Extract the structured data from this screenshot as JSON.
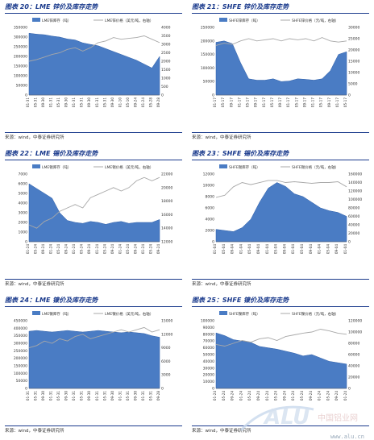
{
  "source_text": "来源：wind，中泰证券研究所",
  "watermark": {
    "logo_text": "ALU",
    "site_text": "中国铝业网",
    "url": "www.alu.cn"
  },
  "colors": {
    "fill": "#4a7cc4",
    "fill_dark": "#2f5fa8",
    "line": "#a8a8a8",
    "title": "#1a3a8c"
  },
  "panels": [
    {
      "id": "p20",
      "title": "图表 20：LME 锌价及库存走势",
      "chart_data": {
        "type": "area",
        "legend": [
          "LME锌库存（吨）",
          "LME锌价格（美元/吨，右轴）"
        ],
        "x": [
          "01-31",
          "05-31",
          "09-30",
          "01-31",
          "05-31",
          "09-30",
          "01-31",
          "05-31",
          "09-30",
          "01-31",
          "05-31",
          "09-30",
          "01-10",
          "05-10",
          "09-24",
          "01-24",
          "05-28",
          "09-28"
        ],
        "ylim": [
          0,
          350000
        ],
        "y2lim": [
          0,
          4000
        ],
        "yticks": [
          0,
          50000,
          100000,
          150000,
          200000,
          250000,
          300000,
          350000
        ],
        "y2ticks": [
          0,
          500,
          1000,
          1500,
          2000,
          2500,
          3000,
          3500,
          4000
        ],
        "series": [
          {
            "name": "LME锌库存（吨）",
            "values": [
              320000,
              315000,
              312000,
              305000,
              300000,
              290000,
              285000,
              270000,
              262000,
              255000,
              240000,
              225000,
              210000,
              195000,
              180000,
              160000,
              140000,
              200000
            ]
          },
          {
            "name": "LME锌价格（美元/吨，右轴）",
            "values": [
              2000,
              2100,
              2250,
              2400,
              2500,
              2700,
              2800,
              2600,
              2800,
              3100,
              3200,
              3400,
              3300,
              3350,
              3400,
              3500,
              3300,
              3100
            ]
          }
        ]
      }
    },
    {
      "id": "p21",
      "title": "图表 21：SHFE 锌价及库存走势",
      "chart_data": {
        "type": "area",
        "legend": [
          "SHFE锌库存（吨）",
          "SHFE锌价格（元/吨，右轴）"
        ],
        "x": [
          "01-17",
          "05-17",
          "09-17",
          "01-17",
          "05-17",
          "09-17",
          "01-17",
          "05-17",
          "09-17",
          "01-17",
          "05-17",
          "09-17",
          "01-17",
          "05-17",
          "09-17",
          "01-17",
          "05-17"
        ],
        "ylim": [
          0,
          250000
        ],
        "y2lim": [
          0,
          30000
        ],
        "yticks": [
          0,
          50000,
          100000,
          150000,
          200000,
          250000
        ],
        "y2ticks": [
          0,
          5000,
          10000,
          15000,
          20000,
          25000,
          30000
        ],
        "series": [
          {
            "name": "SHFE锌库存（吨）",
            "values": [
              195000,
              200000,
              190000,
              120000,
              60000,
              55000,
              55000,
              60000,
              50000,
              52000,
              60000,
              58000,
              55000,
              60000,
              90000,
              150000,
              160000
            ]
          },
          {
            "name": "SHFE锌价格（元/吨，右轴）",
            "values": [
              22000,
              23000,
              22500,
              24000,
              25000,
              24000,
              24500,
              25000,
              24000,
              25000,
              24500,
              25000,
              24000,
              25500,
              24000,
              23500,
              24000
            ]
          }
        ]
      }
    },
    {
      "id": "p22",
      "title": "图表 22：LME 锡价及库存走势",
      "chart_data": {
        "type": "area",
        "legend": [
          "LME锡库存（吨）",
          "LME锡价格（美元/吨，右轴）"
        ],
        "x": [
          "01-24",
          "05-24",
          "09-24",
          "01-24",
          "05-24",
          "09-24",
          "01-24",
          "05-24",
          "09-24",
          "01-24",
          "05-24",
          "09-24",
          "01-24",
          "05-24",
          "09-24",
          "01-24",
          "05-24",
          "09-24"
        ],
        "ylim": [
          0,
          7000
        ],
        "y2lim": [
          12000,
          22000
        ],
        "yticks": [
          0,
          1000,
          2000,
          3000,
          4000,
          5000,
          6000,
          7000
        ],
        "y2ticks": [
          12000,
          14000,
          16000,
          18000,
          20000,
          22000
        ],
        "series": [
          {
            "name": "LME锡库存（吨）",
            "values": [
              6000,
              5500,
              5000,
              4500,
              3000,
              2200,
              2000,
              1900,
              2100,
              2000,
              1800,
              2000,
              2100,
              1900,
              2000,
              2000,
              2000,
              2300
            ]
          },
          {
            "name": "LME锡价格（美元/吨，右轴）",
            "values": [
              14500,
              14000,
              15000,
              15500,
              16500,
              17000,
              17500,
              17000,
              18500,
              19000,
              19500,
              20000,
              19500,
              20000,
              21000,
              21500,
              21000,
              21500
            ]
          }
        ]
      }
    },
    {
      "id": "p23",
      "title": "图表 23：SHFE 锡价及库存走势",
      "chart_data": {
        "type": "area",
        "legend": [
          "SHFE锡库存（吨）",
          "SHFE锡价格（元/吨，右轴）"
        ],
        "x": [
          "01-04",
          "05-04",
          "09-04",
          "01-04",
          "05-04",
          "09-04",
          "01-04",
          "05-04",
          "09-04",
          "01-04",
          "05-04",
          "09-04",
          "01-04",
          "05-04",
          "09-04",
          "01-04"
        ],
        "ylim": [
          0,
          12000
        ],
        "y2lim": [
          0,
          160000
        ],
        "yticks": [
          0,
          2000,
          4000,
          6000,
          8000,
          10000,
          12000
        ],
        "y2ticks": [
          0,
          20000,
          40000,
          60000,
          80000,
          100000,
          120000,
          140000,
          160000
        ],
        "series": [
          {
            "name": "SHFE锡库存（吨）",
            "values": [
              2200,
              2000,
              1800,
              2500,
              4000,
              7000,
              9500,
              10500,
              9800,
              8500,
              8000,
              7000,
              6000,
              5500,
              5200,
              4500
            ]
          },
          {
            "name": "SHFE锡价格（元/吨，右轴）",
            "values": [
              105000,
              110000,
              130000,
              140000,
              135000,
              140000,
              145000,
              145000,
              140000,
              142000,
              140000,
              138000,
              140000,
              140000,
              142000,
              130000
            ]
          }
        ]
      }
    },
    {
      "id": "p24",
      "title": "图表 24：LME 镍价及库存走势",
      "chart_data": {
        "type": "area",
        "legend": [
          "LME镍库存（吨）",
          "LME镍价格（美元/吨，右轴）"
        ],
        "x": [
          "01-31",
          "05-31",
          "09-30",
          "01-31",
          "05-31",
          "09-30",
          "01-31",
          "05-31",
          "09-30",
          "01-31",
          "05-31",
          "09-30",
          "01-31",
          "05-31",
          "09-30",
          "01-31",
          "05-31",
          "09-28"
        ],
        "ylim": [
          0,
          450000
        ],
        "y2lim": [
          0,
          15000
        ],
        "yticks": [
          0,
          50000,
          100000,
          150000,
          200000,
          250000,
          300000,
          350000,
          400000,
          450000
        ],
        "y2ticks": [
          0,
          3000,
          6000,
          9000,
          12000,
          15000
        ],
        "series": [
          {
            "name": "LME镍库存（吨）",
            "values": [
              380000,
              385000,
              380000,
              375000,
              380000,
              385000,
              380000,
              375000,
              380000,
              385000,
              380000,
              375000,
              370000,
              375000,
              370000,
              365000,
              350000,
              340000
            ]
          },
          {
            "name": "LME镍价格（美元/吨，右轴）",
            "values": [
              9000,
              9500,
              10500,
              10000,
              11000,
              10500,
              11500,
              12000,
              11000,
              11500,
              12000,
              12500,
              13000,
              12500,
              13000,
              13500,
              12500,
              13000
            ]
          }
        ]
      }
    },
    {
      "id": "p25",
      "title": "图表 25：SHFE 镍价及库存走势",
      "chart_data": {
        "type": "area",
        "legend": [
          "SHFE镍库存（吨）",
          "SHFE镍价格（元/吨，右轴）"
        ],
        "x": [
          "01-24",
          "05-24",
          "09-24",
          "01-24",
          "05-24",
          "09-24",
          "01-24",
          "05-24",
          "09-24",
          "01-24",
          "05-24",
          "09-24",
          "01-24",
          "05-24",
          "09-24",
          "01-24"
        ],
        "ylim": [
          0,
          100000
        ],
        "y2lim": [
          0,
          120000
        ],
        "yticks": [
          0,
          10000,
          20000,
          30000,
          40000,
          50000,
          60000,
          70000,
          80000,
          90000,
          100000
        ],
        "y2ticks": [
          0,
          20000,
          40000,
          60000,
          80000,
          100000,
          120000
        ],
        "series": [
          {
            "name": "SHFE镍库存（吨）",
            "values": [
              82000,
              78000,
              72000,
              70000,
              68000,
              62000,
              60000,
              58000,
              55000,
              52000,
              48000,
              50000,
              45000,
              40000,
              38000,
              36000
            ]
          },
          {
            "name": "SHFE镍价格（元/吨，右轴）",
            "values": [
              78000,
              75000,
              80000,
              85000,
              82000,
              88000,
              90000,
              85000,
              92000,
              95000,
              98000,
              100000,
              105000,
              102000,
              98000,
              96000
            ]
          }
        ]
      }
    }
  ]
}
